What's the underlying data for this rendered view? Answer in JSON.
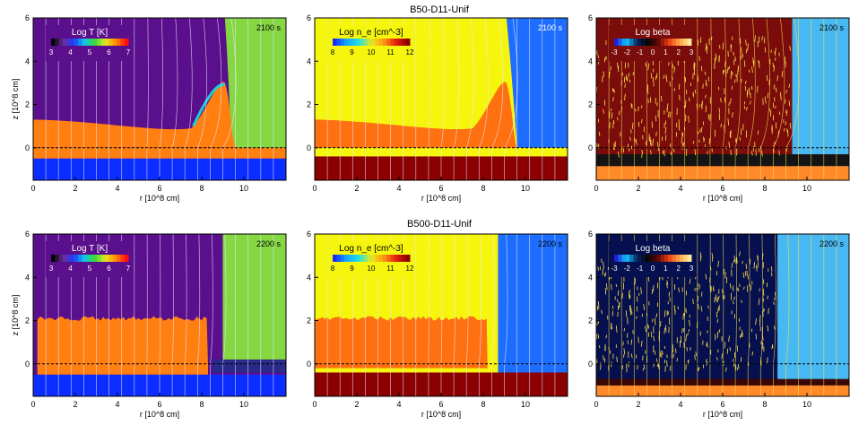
{
  "rows": [
    {
      "title": "B50-D11-Unif"
    },
    {
      "title": "B500-D11-Unif"
    }
  ],
  "chart_data": [
    {
      "type": "heatmap",
      "row": 0,
      "panel": "temperature",
      "timestamp": "2100 s",
      "colorbar_label": "Log T [K]",
      "colorbar_ticks": [
        "3",
        "4",
        "5",
        "6",
        "7"
      ],
      "colorbar_range": [
        3,
        7
      ],
      "xlabel": "r [10^8 cm]",
      "ylabel": "z [10^8 cm]",
      "xlim": [
        0,
        12
      ],
      "ylim": [
        -1.5,
        6
      ],
      "x_ticks": [
        "0",
        "2",
        "4",
        "6",
        "8",
        "10"
      ],
      "y_ticks": [
        "0",
        "2",
        "4",
        "6"
      ]
    },
    {
      "type": "heatmap",
      "row": 0,
      "panel": "density",
      "timestamp": "2100 s",
      "colorbar_label": "Log n_e [cm^-3]",
      "colorbar_ticks": [
        "8",
        "9",
        "10",
        "11",
        "12"
      ],
      "colorbar_range": [
        8,
        12
      ],
      "xlabel": "r [10^8 cm]",
      "ylabel": "",
      "xlim": [
        0,
        12
      ],
      "ylim": [
        -1.5,
        6
      ],
      "x_ticks": [
        "0",
        "2",
        "4",
        "6",
        "8",
        "10"
      ],
      "y_ticks": [
        "0",
        "2",
        "4",
        "6"
      ]
    },
    {
      "type": "heatmap",
      "row": 0,
      "panel": "beta",
      "timestamp": "2100 s",
      "colorbar_label": "Log beta",
      "colorbar_ticks": [
        "-3",
        "-2",
        "-1",
        "0",
        "1",
        "2",
        "3"
      ],
      "colorbar_range": [
        -3,
        3
      ],
      "xlabel": "r [10^8 cm]",
      "ylabel": "",
      "xlim": [
        0,
        12
      ],
      "ylim": [
        -1.5,
        6
      ],
      "x_ticks": [
        "0",
        "2",
        "4",
        "6",
        "8",
        "10"
      ],
      "y_ticks": [
        "0",
        "2",
        "4",
        "6"
      ]
    },
    {
      "type": "heatmap",
      "row": 1,
      "panel": "temperature",
      "timestamp": "2200 s",
      "colorbar_label": "Log T [K]",
      "colorbar_ticks": [
        "3",
        "4",
        "5",
        "6",
        "7"
      ],
      "colorbar_range": [
        3,
        7
      ],
      "xlabel": "r [10^8 cm]",
      "ylabel": "z [10^8 cm]",
      "xlim": [
        0,
        12
      ],
      "ylim": [
        -1.5,
        6
      ],
      "x_ticks": [
        "0",
        "2",
        "4",
        "6",
        "8",
        "10"
      ],
      "y_ticks": [
        "0",
        "2",
        "4",
        "6"
      ]
    },
    {
      "type": "heatmap",
      "row": 1,
      "panel": "density",
      "timestamp": "2200 s",
      "colorbar_label": "Log n_e [cm^-3]",
      "colorbar_ticks": [
        "8",
        "9",
        "10",
        "11",
        "12"
      ],
      "colorbar_range": [
        8,
        12
      ],
      "xlabel": "r [10^8 cm]",
      "ylabel": "",
      "xlim": [
        0,
        12
      ],
      "ylim": [
        -1.5,
        6
      ],
      "x_ticks": [
        "0",
        "2",
        "4",
        "6",
        "8",
        "10"
      ],
      "y_ticks": [
        "0",
        "2",
        "4",
        "6"
      ]
    },
    {
      "type": "heatmap",
      "row": 1,
      "panel": "beta",
      "timestamp": "2200 s",
      "colorbar_label": "Log beta",
      "colorbar_ticks": [
        "-3",
        "-2",
        "-1",
        "0",
        "1",
        "2",
        "3"
      ],
      "colorbar_range": [
        -3,
        3
      ],
      "xlabel": "r [10^8 cm]",
      "ylabel": "",
      "xlim": [
        0,
        12
      ],
      "ylim": [
        -1.5,
        6
      ],
      "x_ticks": [
        "0",
        "2",
        "4",
        "6",
        "8",
        "10"
      ],
      "y_ticks": [
        "0",
        "2",
        "4",
        "6"
      ]
    }
  ],
  "colors": {
    "temp_background": "#5a0f8c",
    "temp_front": "#ff7f10",
    "temp_corona": "#86d842",
    "temp_base": "#0c2dff",
    "dens_background": "#f5f50d",
    "dens_front": "#ff7010",
    "dens_corona": "#1d6dff",
    "dens_base": "#8b0000",
    "beta_background_top": "#7a0c0c",
    "beta_background_bottom": "#06104e",
    "beta_corona": "#47b8f2",
    "beta_base": "#ff8a2a",
    "fieldline": "#e8e8ff",
    "fieldline_beta": "#ffe24a"
  }
}
